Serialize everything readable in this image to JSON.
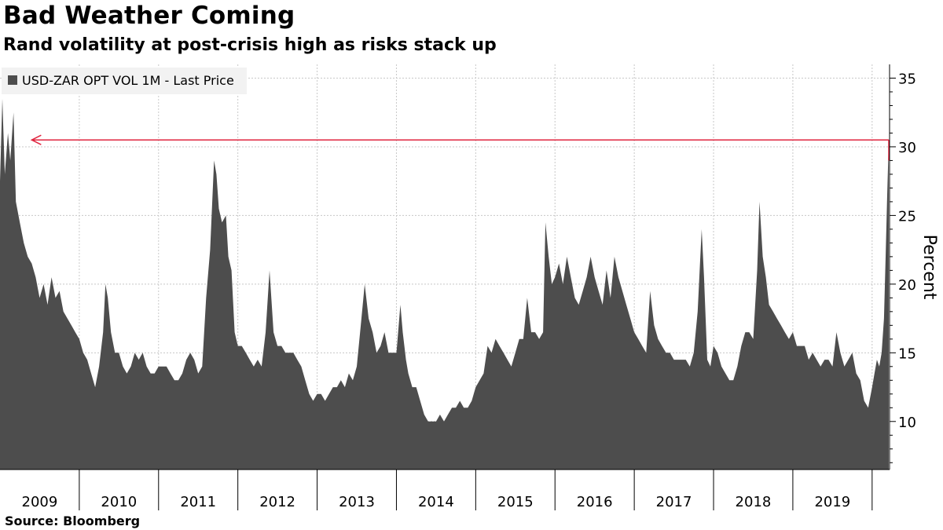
{
  "title": "Bad Weather Coming",
  "subtitle": "Rand volatility at post-crisis high as risks stack up",
  "source": "Source:  Bloomberg",
  "colors": {
    "series": "#4d4d4d",
    "annotation": "#e0253f",
    "grid": "#c8c8c8"
  },
  "chart_data": {
    "type": "area",
    "title": "Bad Weather Coming",
    "subtitle": "Rand volatility at post-crisis high as risks stack up",
    "xlabel": "",
    "ylabel": "Percent",
    "ylim": [
      6.5,
      36
    ],
    "xlim": [
      2009.0,
      2020.22
    ],
    "yticks": [
      10,
      15,
      20,
      25,
      30,
      35
    ],
    "xtick_labels": [
      "2009",
      "2010",
      "2011",
      "2012",
      "2013",
      "2014",
      "2015",
      "2016",
      "2017",
      "2018",
      "2019"
    ],
    "grid": true,
    "legend_position": "top-left",
    "series": [
      {
        "name": "USD-ZAR OPT VOL 1M - Last Price",
        "points": [
          [
            2009.0,
            27.5
          ],
          [
            2009.03,
            33.5
          ],
          [
            2009.06,
            28.0
          ],
          [
            2009.1,
            31.0
          ],
          [
            2009.13,
            29.0
          ],
          [
            2009.17,
            32.5
          ],
          [
            2009.2,
            26.0
          ],
          [
            2009.25,
            24.5
          ],
          [
            2009.3,
            23.0
          ],
          [
            2009.35,
            22.0
          ],
          [
            2009.4,
            21.5
          ],
          [
            2009.45,
            20.5
          ],
          [
            2009.5,
            19.0
          ],
          [
            2009.55,
            20.0
          ],
          [
            2009.6,
            18.5
          ],
          [
            2009.65,
            20.5
          ],
          [
            2009.7,
            19.0
          ],
          [
            2009.75,
            19.5
          ],
          [
            2009.8,
            18.0
          ],
          [
            2009.85,
            17.5
          ],
          [
            2009.9,
            17.0
          ],
          [
            2009.95,
            16.5
          ],
          [
            2010.0,
            16.0
          ],
          [
            2010.05,
            15.0
          ],
          [
            2010.1,
            14.5
          ],
          [
            2010.15,
            13.5
          ],
          [
            2010.2,
            12.5
          ],
          [
            2010.25,
            14.0
          ],
          [
            2010.3,
            16.5
          ],
          [
            2010.33,
            20.0
          ],
          [
            2010.36,
            19.0
          ],
          [
            2010.4,
            16.5
          ],
          [
            2010.45,
            15.0
          ],
          [
            2010.5,
            15.0
          ],
          [
            2010.55,
            14.0
          ],
          [
            2010.6,
            13.5
          ],
          [
            2010.65,
            14.0
          ],
          [
            2010.7,
            15.0
          ],
          [
            2010.75,
            14.5
          ],
          [
            2010.8,
            15.0
          ],
          [
            2010.85,
            14.0
          ],
          [
            2010.9,
            13.5
          ],
          [
            2010.95,
            13.5
          ],
          [
            2011.0,
            14.0
          ],
          [
            2011.05,
            14.0
          ],
          [
            2011.1,
            14.0
          ],
          [
            2011.15,
            13.5
          ],
          [
            2011.2,
            13.0
          ],
          [
            2011.25,
            13.0
          ],
          [
            2011.3,
            13.5
          ],
          [
            2011.35,
            14.5
          ],
          [
            2011.4,
            15.0
          ],
          [
            2011.45,
            14.5
          ],
          [
            2011.5,
            13.5
          ],
          [
            2011.55,
            14.0
          ],
          [
            2011.6,
            19.0
          ],
          [
            2011.65,
            22.5
          ],
          [
            2011.7,
            29.0
          ],
          [
            2011.73,
            28.0
          ],
          [
            2011.76,
            25.5
          ],
          [
            2011.8,
            24.5
          ],
          [
            2011.85,
            25.0
          ],
          [
            2011.88,
            22.0
          ],
          [
            2011.92,
            21.0
          ],
          [
            2011.96,
            16.5
          ],
          [
            2012.0,
            15.5
          ],
          [
            2012.05,
            15.5
          ],
          [
            2012.1,
            15.0
          ],
          [
            2012.15,
            14.5
          ],
          [
            2012.2,
            14.0
          ],
          [
            2012.25,
            14.5
          ],
          [
            2012.3,
            14.0
          ],
          [
            2012.35,
            16.5
          ],
          [
            2012.4,
            21.0
          ],
          [
            2012.45,
            16.5
          ],
          [
            2012.5,
            15.5
          ],
          [
            2012.55,
            15.5
          ],
          [
            2012.6,
            15.0
          ],
          [
            2012.65,
            15.0
          ],
          [
            2012.7,
            15.0
          ],
          [
            2012.75,
            14.5
          ],
          [
            2012.8,
            14.0
          ],
          [
            2012.85,
            13.0
          ],
          [
            2012.9,
            12.0
          ],
          [
            2012.95,
            11.5
          ],
          [
            2013.0,
            12.0
          ],
          [
            2013.05,
            12.0
          ],
          [
            2013.1,
            11.5
          ],
          [
            2013.15,
            12.0
          ],
          [
            2013.2,
            12.5
          ],
          [
            2013.25,
            12.5
          ],
          [
            2013.3,
            13.0
          ],
          [
            2013.35,
            12.5
          ],
          [
            2013.4,
            13.5
          ],
          [
            2013.45,
            13.0
          ],
          [
            2013.5,
            14.0
          ],
          [
            2013.55,
            17.0
          ],
          [
            2013.6,
            20.0
          ],
          [
            2013.65,
            17.5
          ],
          [
            2013.7,
            16.5
          ],
          [
            2013.75,
            15.0
          ],
          [
            2013.8,
            15.5
          ],
          [
            2013.85,
            16.5
          ],
          [
            2013.9,
            15.0
          ],
          [
            2013.95,
            15.0
          ],
          [
            2014.0,
            15.0
          ],
          [
            2014.05,
            18.5
          ],
          [
            2014.08,
            16.5
          ],
          [
            2014.12,
            14.5
          ],
          [
            2014.15,
            13.5
          ],
          [
            2014.2,
            12.5
          ],
          [
            2014.25,
            12.5
          ],
          [
            2014.3,
            11.5
          ],
          [
            2014.35,
            10.5
          ],
          [
            2014.4,
            10.0
          ],
          [
            2014.45,
            10.0
          ],
          [
            2014.5,
            10.0
          ],
          [
            2014.55,
            10.5
          ],
          [
            2014.6,
            10.0
          ],
          [
            2014.65,
            10.5
          ],
          [
            2014.7,
            11.0
          ],
          [
            2014.75,
            11.0
          ],
          [
            2014.8,
            11.5
          ],
          [
            2014.85,
            11.0
          ],
          [
            2014.9,
            11.0
          ],
          [
            2014.95,
            11.5
          ],
          [
            2015.0,
            12.5
          ],
          [
            2015.05,
            13.0
          ],
          [
            2015.1,
            13.5
          ],
          [
            2015.15,
            15.5
          ],
          [
            2015.2,
            15.0
          ],
          [
            2015.25,
            16.0
          ],
          [
            2015.3,
            15.5
          ],
          [
            2015.35,
            15.0
          ],
          [
            2015.4,
            14.5
          ],
          [
            2015.45,
            14.0
          ],
          [
            2015.5,
            15.0
          ],
          [
            2015.55,
            16.0
          ],
          [
            2015.6,
            16.0
          ],
          [
            2015.65,
            19.0
          ],
          [
            2015.7,
            16.5
          ],
          [
            2015.75,
            16.5
          ],
          [
            2015.8,
            16.0
          ],
          [
            2015.85,
            16.5
          ],
          [
            2015.88,
            24.5
          ],
          [
            2015.92,
            22.0
          ],
          [
            2015.96,
            20.0
          ],
          [
            2016.0,
            20.5
          ],
          [
            2016.05,
            21.5
          ],
          [
            2016.1,
            20.0
          ],
          [
            2016.15,
            22.0
          ],
          [
            2016.2,
            20.5
          ],
          [
            2016.25,
            19.0
          ],
          [
            2016.3,
            18.5
          ],
          [
            2016.35,
            19.5
          ],
          [
            2016.4,
            20.5
          ],
          [
            2016.45,
            22.0
          ],
          [
            2016.5,
            20.5
          ],
          [
            2016.55,
            19.5
          ],
          [
            2016.6,
            18.5
          ],
          [
            2016.65,
            21.0
          ],
          [
            2016.7,
            19.0
          ],
          [
            2016.75,
            22.0
          ],
          [
            2016.8,
            20.5
          ],
          [
            2016.85,
            19.5
          ],
          [
            2016.9,
            18.5
          ],
          [
            2016.95,
            17.5
          ],
          [
            2017.0,
            16.5
          ],
          [
            2017.05,
            16.0
          ],
          [
            2017.1,
            15.5
          ],
          [
            2017.15,
            15.0
          ],
          [
            2017.2,
            19.5
          ],
          [
            2017.25,
            17.0
          ],
          [
            2017.3,
            16.0
          ],
          [
            2017.35,
            15.5
          ],
          [
            2017.4,
            15.0
          ],
          [
            2017.45,
            15.0
          ],
          [
            2017.5,
            14.5
          ],
          [
            2017.55,
            14.5
          ],
          [
            2017.6,
            14.5
          ],
          [
            2017.65,
            14.5
          ],
          [
            2017.7,
            14.0
          ],
          [
            2017.75,
            15.0
          ],
          [
            2017.8,
            18.0
          ],
          [
            2017.85,
            24.0
          ],
          [
            2017.88,
            20.5
          ],
          [
            2017.92,
            14.5
          ],
          [
            2017.96,
            14.0
          ],
          [
            2018.0,
            15.5
          ],
          [
            2018.05,
            15.0
          ],
          [
            2018.1,
            14.0
          ],
          [
            2018.15,
            13.5
          ],
          [
            2018.2,
            13.0
          ],
          [
            2018.25,
            13.0
          ],
          [
            2018.3,
            14.0
          ],
          [
            2018.35,
            15.5
          ],
          [
            2018.4,
            16.5
          ],
          [
            2018.45,
            16.5
          ],
          [
            2018.5,
            16.0
          ],
          [
            2018.55,
            21.0
          ],
          [
            2018.58,
            26.0
          ],
          [
            2018.62,
            22.0
          ],
          [
            2018.66,
            20.5
          ],
          [
            2018.7,
            18.5
          ],
          [
            2018.75,
            18.0
          ],
          [
            2018.8,
            17.5
          ],
          [
            2018.85,
            17.0
          ],
          [
            2018.9,
            16.5
          ],
          [
            2018.95,
            16.0
          ],
          [
            2019.0,
            16.5
          ],
          [
            2019.05,
            15.5
          ],
          [
            2019.1,
            15.5
          ],
          [
            2019.15,
            15.5
          ],
          [
            2019.2,
            14.5
          ],
          [
            2019.25,
            15.0
          ],
          [
            2019.3,
            14.5
          ],
          [
            2019.35,
            14.0
          ],
          [
            2019.4,
            14.5
          ],
          [
            2019.45,
            14.5
          ],
          [
            2019.5,
            14.0
          ],
          [
            2019.55,
            16.5
          ],
          [
            2019.6,
            15.0
          ],
          [
            2019.65,
            14.0
          ],
          [
            2019.7,
            14.5
          ],
          [
            2019.75,
            15.0
          ],
          [
            2019.8,
            13.5
          ],
          [
            2019.85,
            13.0
          ],
          [
            2019.9,
            11.5
          ],
          [
            2019.95,
            11.0
          ],
          [
            2020.0,
            12.5
          ],
          [
            2020.03,
            13.5
          ],
          [
            2020.06,
            14.5
          ],
          [
            2020.09,
            14.0
          ],
          [
            2020.12,
            15.0
          ],
          [
            2020.15,
            17.5
          ],
          [
            2020.17,
            22.0
          ],
          [
            2020.19,
            26.5
          ],
          [
            2020.21,
            30.5
          ]
        ]
      }
    ],
    "annotations": [
      {
        "type": "arrow",
        "y": 30.5,
        "from_x": 2020.21,
        "to_x": 2009.4,
        "color": "#e0253f"
      }
    ]
  }
}
